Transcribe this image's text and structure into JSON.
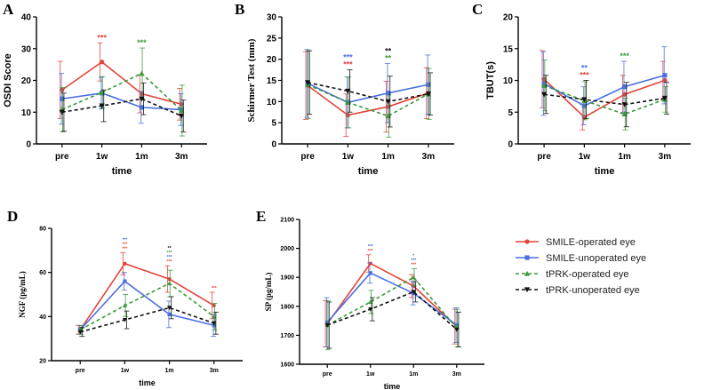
{
  "colors": {
    "smile_op": "#e2443a",
    "smile_unop": "#4a6fe0",
    "tprk_op": "#3a9a3a",
    "tprk_unop": "#111111"
  },
  "legend": {
    "items": [
      {
        "label": "SMILE-operated eye",
        "color": "#e2443a",
        "dash": "solid",
        "marker": "circle"
      },
      {
        "label": "SMILE-unoperated eye",
        "color": "#4a6fe0",
        "dash": "solid",
        "marker": "square"
      },
      {
        "label": "tPRK-operated eye",
        "color": "#3a9a3a",
        "dash": "dashed",
        "marker": "triangle"
      },
      {
        "label": "tPRK-unoperated eye",
        "color": "#111111",
        "dash": "dashed",
        "marker": "triangle-down"
      }
    ]
  },
  "chart_data": [
    {
      "id": "A",
      "panel": "A",
      "type": "line",
      "title": "",
      "xlabel": "time",
      "ylabel": "OSDI Score",
      "categories": [
        "pre",
        "1w",
        "1m",
        "3m"
      ],
      "ylim": [
        0,
        40
      ],
      "yticks": [
        "0",
        "10",
        "20",
        "30",
        "40"
      ],
      "ytick_values": [
        0,
        10,
        20,
        30,
        40
      ],
      "series": [
        {
          "name": "SMILE-operated eye",
          "values": [
            17,
            25.8,
            15.8,
            12.5
          ],
          "err": [
            9,
            6,
            6,
            5
          ]
        },
        {
          "name": "SMILE-unoperated eye",
          "values": [
            14.2,
            16,
            11.5,
            10.8
          ],
          "err": [
            8,
            5,
            5,
            5
          ]
        },
        {
          "name": "tPRK-operated eye",
          "values": [
            10.8,
            16.2,
            22.2,
            10.5
          ],
          "err": [
            7,
            5,
            8,
            8
          ]
        },
        {
          "name": "tPRK-unoperated eye",
          "values": [
            10,
            12,
            14.2,
            8.8
          ],
          "err": [
            6,
            5,
            5,
            5
          ]
        }
      ],
      "annotations": [
        {
          "category": "1w",
          "lines": [
            {
              "text": "***",
              "series": 0
            }
          ]
        },
        {
          "category": "1m",
          "lines": [
            {
              "text": "***",
              "series": 2
            }
          ]
        }
      ]
    },
    {
      "id": "B",
      "panel": "B",
      "type": "line",
      "title": "",
      "xlabel": "time",
      "ylabel": "Schirmer Test (mm)",
      "categories": [
        "pre",
        "1w",
        "1m",
        "3m"
      ],
      "ylim": [
        0,
        30
      ],
      "yticks": [
        "0",
        "5",
        "10",
        "15",
        "20",
        "25",
        "30"
      ],
      "ytick_values": [
        0,
        5,
        10,
        15,
        20,
        25,
        30
      ],
      "series": [
        {
          "name": "SMILE-operated eye",
          "values": [
            13.8,
            6.8,
            8.8,
            12
          ],
          "err": [
            8,
            5,
            6,
            6
          ]
        },
        {
          "name": "SMILE-unoperated eye",
          "values": [
            14.3,
            9.8,
            12,
            14
          ],
          "err": [
            8,
            6,
            7,
            7
          ]
        },
        {
          "name": "tPRK-operated eye",
          "values": [
            14,
            9.8,
            6.6,
            11.8
          ],
          "err": [
            8,
            6,
            5,
            6
          ]
        },
        {
          "name": "tPRK-unoperated eye",
          "values": [
            14.5,
            12.5,
            10,
            11.8
          ],
          "err": [
            7.5,
            5,
            6,
            5
          ]
        }
      ],
      "annotations": [
        {
          "category": "1w",
          "lines": [
            {
              "text": "***",
              "series": 1
            },
            {
              "text": "***",
              "series": 0
            }
          ]
        },
        {
          "category": "1m",
          "lines": [
            {
              "text": "**",
              "series": 3
            },
            {
              "text": "**",
              "series": 2
            }
          ]
        }
      ]
    },
    {
      "id": "C",
      "panel": "C",
      "type": "line",
      "title": "",
      "xlabel": "time",
      "ylabel": "TBUT(s)",
      "categories": [
        "pre",
        "1w",
        "1m",
        "3m"
      ],
      "ylim": [
        0,
        20
      ],
      "yticks": [
        "0",
        "5",
        "10",
        "15",
        "20"
      ],
      "ytick_values": [
        0,
        5,
        10,
        15,
        20
      ],
      "series": [
        {
          "name": "SMILE-operated eye",
          "values": [
            10.2,
            4.2,
            7.8,
            10
          ],
          "err": [
            4.5,
            2,
            3,
            3
          ]
        },
        {
          "name": "SMILE-unoperated eye",
          "values": [
            9.5,
            6,
            9,
            10.8
          ],
          "err": [
            5,
            3,
            4,
            4.5
          ]
        },
        {
          "name": "tPRK-operated eye",
          "values": [
            9.2,
            6.8,
            4.7,
            7
          ],
          "err": [
            4,
            3,
            2.5,
            2
          ]
        },
        {
          "name": "tPRK-unoperated eye",
          "values": [
            7.8,
            7,
            6.2,
            7.2
          ],
          "err": [
            3,
            3,
            3.5,
            2.5
          ]
        }
      ],
      "annotations": [
        {
          "category": "1w",
          "lines": [
            {
              "text": "**",
              "series": 1
            },
            {
              "text": "***",
              "series": 0
            }
          ]
        },
        {
          "category": "1m",
          "lines": [
            {
              "text": "***",
              "series": 2
            }
          ]
        }
      ]
    },
    {
      "id": "D",
      "panel": "D",
      "type": "line",
      "title": "",
      "xlabel": "time",
      "ylabel": "NGF (pg/mL)",
      "categories": [
        "pre",
        "1w",
        "1m",
        "3m"
      ],
      "ylim": [
        20,
        80
      ],
      "yticks": [
        "20",
        "40",
        "60",
        "80"
      ],
      "ytick_values": [
        20,
        40,
        60,
        80
      ],
      "series": [
        {
          "name": "SMILE-operated eye",
          "values": [
            34,
            64,
            57,
            45
          ],
          "err": [
            2,
            5,
            6,
            6
          ]
        },
        {
          "name": "SMILE-unoperated eye",
          "values": [
            34,
            56,
            41,
            36
          ],
          "err": [
            2,
            4,
            6,
            5
          ]
        },
        {
          "name": "tPRK-operated eye",
          "values": [
            34,
            45,
            55,
            40
          ],
          "err": [
            2,
            5,
            6,
            6
          ]
        },
        {
          "name": "tPRK-unoperated eye",
          "values": [
            33,
            38.5,
            44,
            37
          ],
          "err": [
            2,
            4,
            5,
            5
          ]
        }
      ],
      "annotations": [
        {
          "category": "1w",
          "lines": [
            {
              "text": "***",
              "series": 1
            },
            {
              "text": "***",
              "series": 0
            },
            {
              "text": "***",
              "series": 0
            }
          ]
        },
        {
          "category": "1m",
          "lines": [
            {
              "text": "**",
              "series": 3
            },
            {
              "text": "***",
              "series": 2
            },
            {
              "text": "***",
              "series": 1
            },
            {
              "text": "***",
              "series": 0
            }
          ]
        },
        {
          "category": "3m",
          "lines": [
            {
              "text": "***",
              "series": 0
            }
          ]
        }
      ]
    },
    {
      "id": "E",
      "panel": "E",
      "type": "line",
      "title": "",
      "xlabel": "time",
      "ylabel": "SP (pg/mL)",
      "categories": [
        "pre",
        "1w",
        "1m",
        "3m"
      ],
      "ylim": [
        1600,
        2100
      ],
      "yticks": [
        "1600",
        "1700",
        "1800",
        "1900",
        "2000",
        "2100"
      ],
      "ytick_values": [
        1600,
        1700,
        1800,
        1900,
        2000,
        2100
      ],
      "series": [
        {
          "name": "SMILE-operated eye",
          "values": [
            1740,
            1948,
            1870,
            1730
          ],
          "err": [
            80,
            30,
            40,
            60
          ]
        },
        {
          "name": "SMILE-unoperated eye",
          "values": [
            1745,
            1915,
            1845,
            1735
          ],
          "err": [
            85,
            35,
            40,
            60
          ]
        },
        {
          "name": "tPRK-operated eye",
          "values": [
            1735,
            1815,
            1900,
            1725
          ],
          "err": [
            85,
            40,
            30,
            65
          ]
        },
        {
          "name": "tPRK-unoperated eye",
          "values": [
            1735,
            1790,
            1850,
            1720
          ],
          "err": [
            80,
            40,
            35,
            60
          ]
        }
      ],
      "annotations": [
        {
          "category": "1w",
          "lines": [
            {
              "text": "***",
              "series": 1
            },
            {
              "text": "***",
              "series": 0
            }
          ]
        },
        {
          "category": "1m",
          "lines": [
            {
              "text": "*",
              "series": 2
            },
            {
              "text": "***",
              "series": 1
            },
            {
              "text": "***",
              "series": 0
            }
          ]
        }
      ]
    }
  ]
}
